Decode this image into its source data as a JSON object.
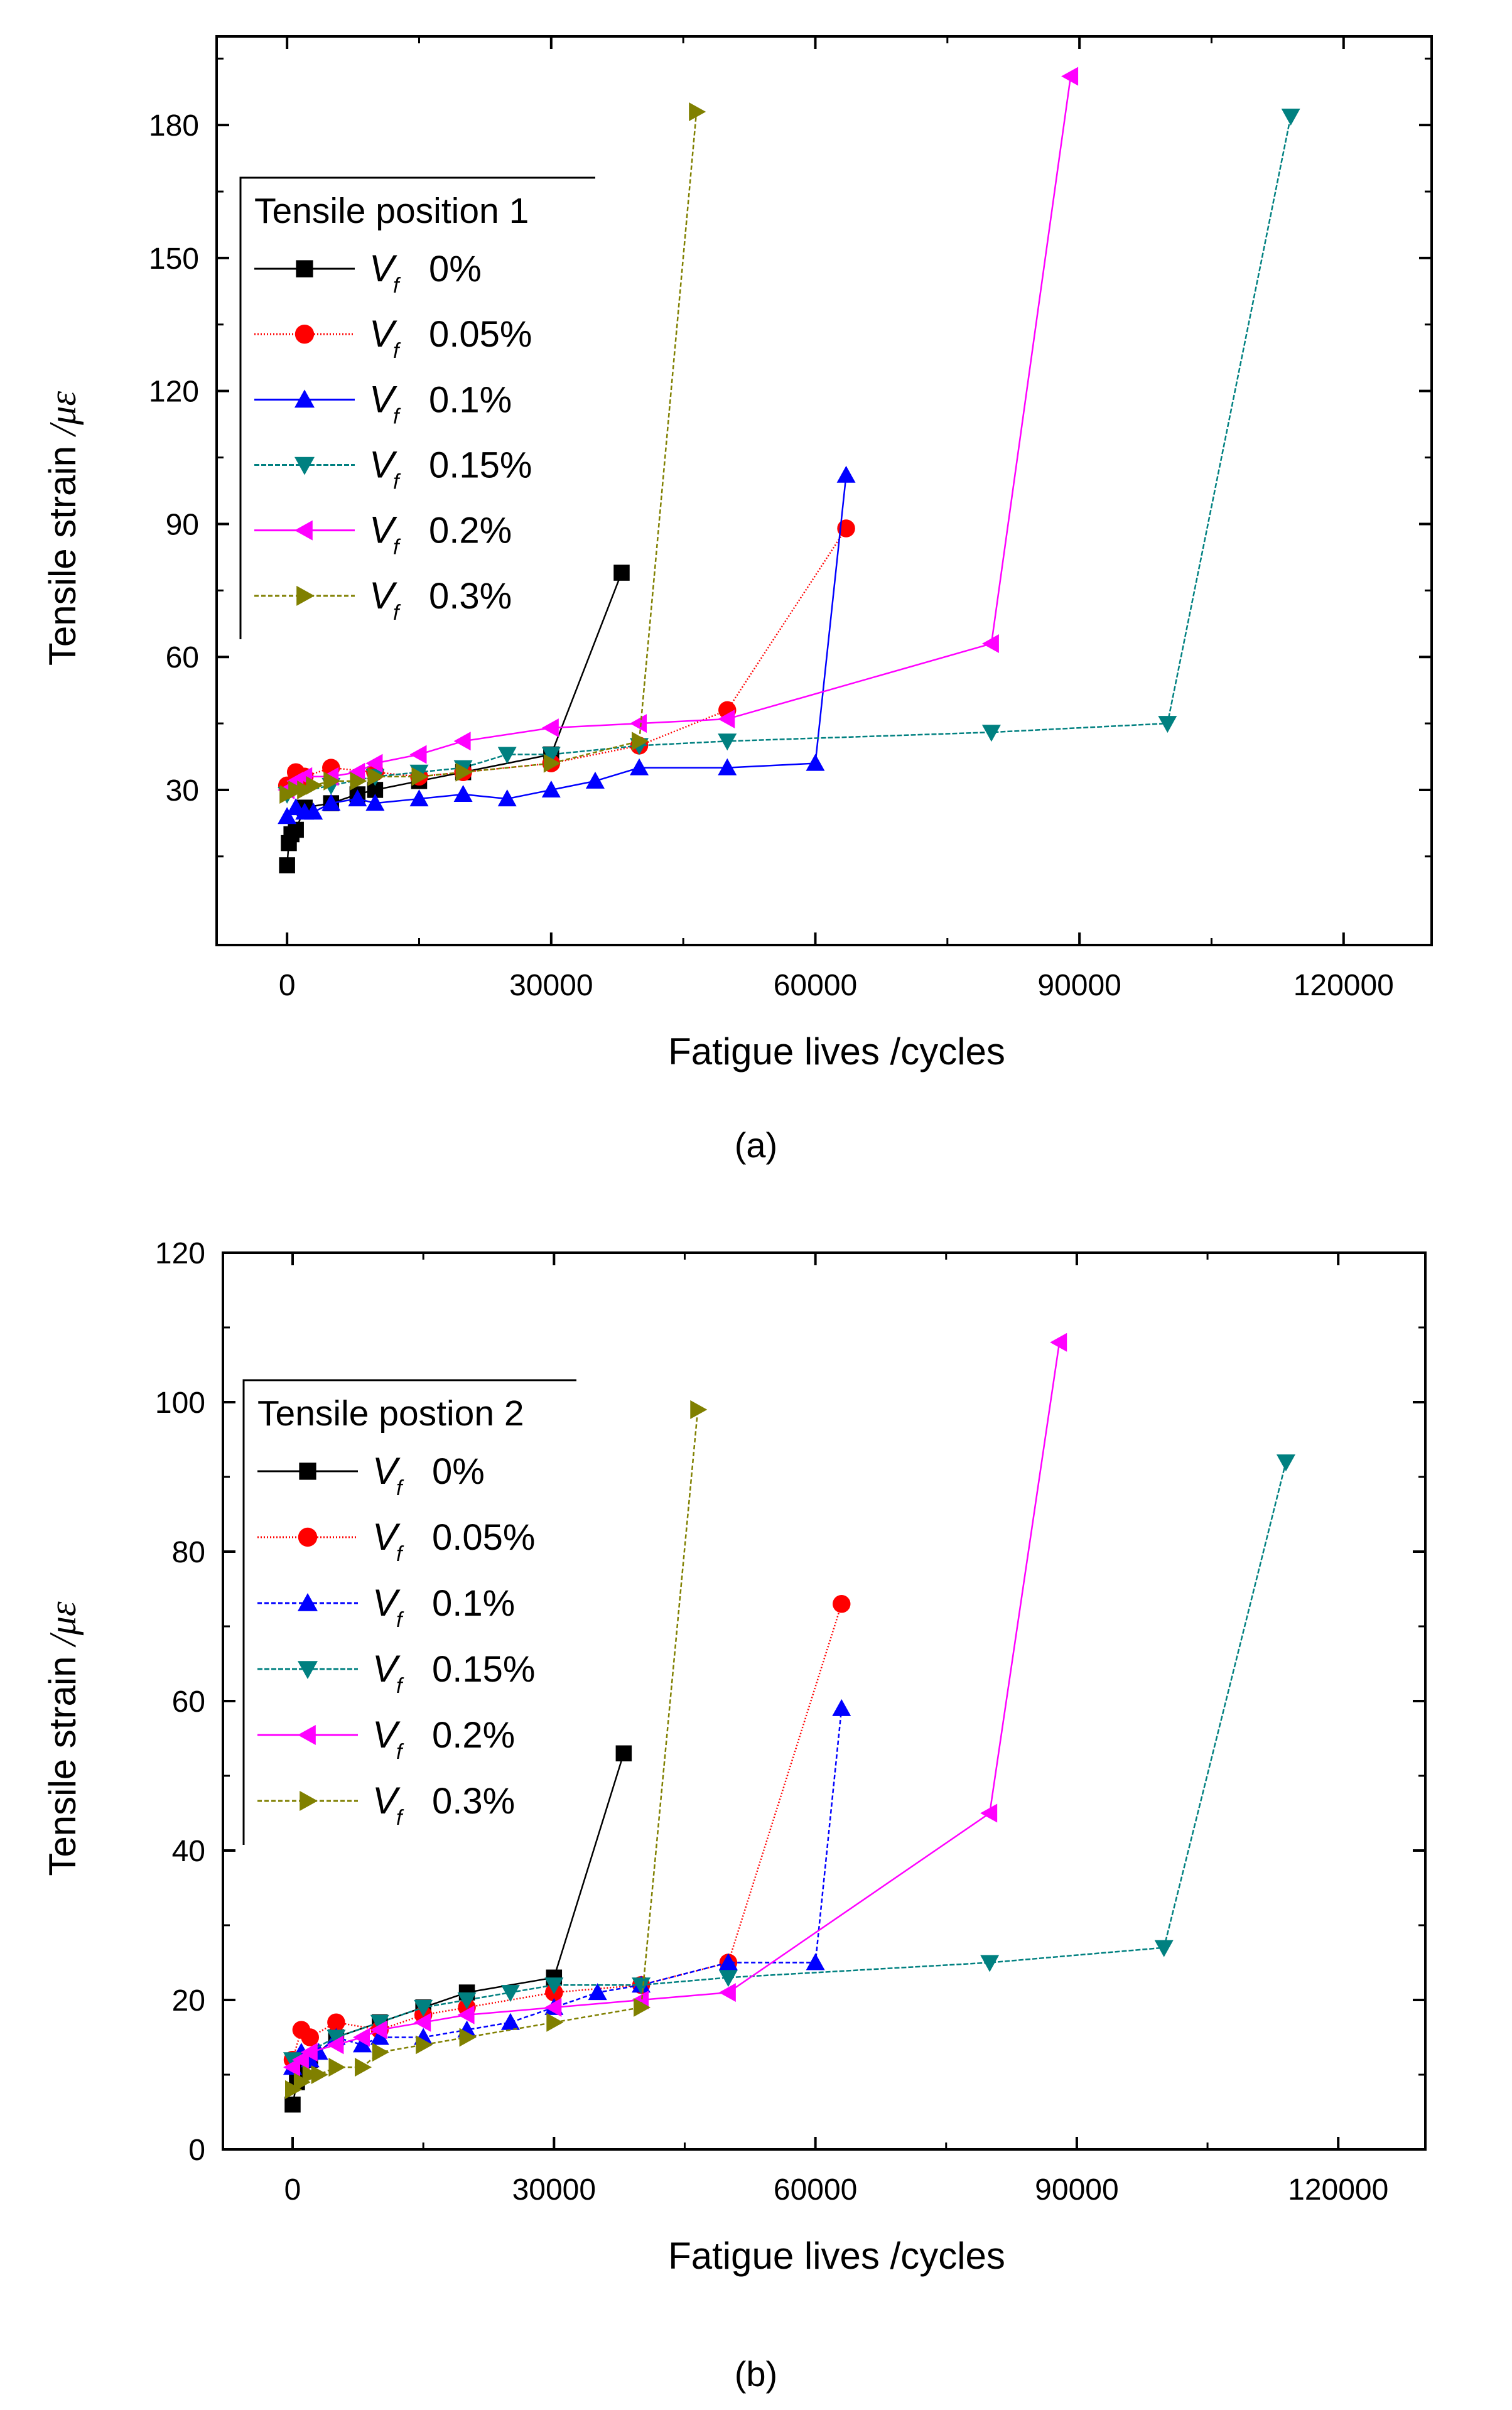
{
  "figure": {
    "panels": [
      {
        "caption": "(a)"
      },
      {
        "caption": "(b)"
      }
    ]
  },
  "chart_data": [
    {
      "type": "line",
      "panel": "a",
      "legend_title": "Tensile position 1",
      "legend_position": "top-left",
      "xlabel": "Fatigue lives   /cycles",
      "ylabel_main": "Tensile strain",
      "ylabel_unit": "/με",
      "xlim": [
        -8000,
        130000
      ],
      "ylim": [
        -5,
        200
      ],
      "xticks": [
        0,
        30000,
        60000,
        90000,
        120000
      ],
      "yticks": [
        30,
        60,
        90,
        120,
        150,
        180
      ],
      "grid": false,
      "series": [
        {
          "name": "0%",
          "marker": "square",
          "color": "#000000",
          "dash": "none",
          "x": [
            0,
            200,
            500,
            1000,
            2000,
            5000,
            8000,
            10000,
            15000,
            20000,
            30000,
            38000
          ],
          "y": [
            13,
            18,
            20,
            21,
            26,
            27,
            29,
            30,
            32,
            34,
            38,
            79
          ]
        },
        {
          "name": "0.05%",
          "marker": "circle",
          "color": "#ff0000",
          "dash": "2,3",
          "x": [
            0,
            1000,
            2000,
            5000,
            10000,
            15000,
            20000,
            30000,
            40000,
            50000,
            63500
          ],
          "y": [
            31,
            34,
            33,
            35,
            34,
            33,
            34,
            36,
            40,
            48,
            89
          ]
        },
        {
          "name": "0.1%",
          "marker": "triangle-up",
          "color": "#0000ff",
          "dash": "none",
          "x": [
            0,
            1000,
            2000,
            3000,
            5000,
            8000,
            10000,
            15000,
            20000,
            25000,
            30000,
            35000,
            40000,
            50000,
            60000,
            63500
          ],
          "y": [
            24,
            26,
            25,
            25,
            27,
            28,
            27,
            28,
            29,
            28,
            30,
            32,
            35,
            35,
            36,
            101
          ]
        },
        {
          "name": "0.15%",
          "marker": "triangle-down",
          "color": "#008080",
          "dash": "8,3",
          "x": [
            0,
            5000,
            10000,
            15000,
            20000,
            25000,
            30000,
            40000,
            50000,
            80000,
            100000,
            114000
          ],
          "y": [
            29,
            31,
            33,
            34,
            35,
            38,
            38,
            40,
            41,
            43,
            45,
            182
          ]
        },
        {
          "name": "0.2%",
          "marker": "triangle-left",
          "color": "#ff00ff",
          "dash": "none",
          "x": [
            0,
            1000,
            2000,
            5000,
            8000,
            10000,
            15000,
            20000,
            30000,
            40000,
            50000,
            80000,
            89000
          ],
          "y": [
            30,
            32,
            33,
            33,
            34,
            36,
            38,
            41,
            44,
            45,
            46,
            63,
            191
          ]
        },
        {
          "name": "0.3%",
          "marker": "triangle-right",
          "color": "#808000",
          "dash": "7,4",
          "x": [
            0,
            1000,
            2000,
            3000,
            5000,
            8000,
            10000,
            15000,
            20000,
            30000,
            40000,
            46500
          ],
          "y": [
            29,
            30,
            30,
            31,
            32,
            32,
            33,
            33,
            34,
            36,
            41,
            183
          ]
        }
      ]
    },
    {
      "type": "line",
      "panel": "b",
      "legend_title": "Tensile postion 2",
      "legend_position": "top-left",
      "xlabel": "Fatigue lives   /cycles",
      "ylabel_main": "Tensile strain",
      "ylabel_unit": "/με",
      "xlim": [
        -8000,
        130000
      ],
      "ylim": [
        0,
        120
      ],
      "xticks": [
        0,
        30000,
        60000,
        90000,
        120000
      ],
      "yticks": [
        0,
        20,
        40,
        60,
        80,
        100,
        120
      ],
      "grid": false,
      "series": [
        {
          "name": "0%",
          "marker": "square",
          "color": "#000000",
          "dash": "none",
          "x": [
            0,
            500,
            1000,
            2000,
            5000,
            10000,
            15000,
            20000,
            30000,
            38000
          ],
          "y": [
            6,
            9,
            11,
            12,
            15,
            17,
            19,
            21,
            23,
            53
          ]
        },
        {
          "name": "0.05%",
          "marker": "circle",
          "color": "#ff0000",
          "dash": "2,3",
          "x": [
            0,
            1000,
            2000,
            5000,
            10000,
            15000,
            20000,
            30000,
            40000,
            50000,
            63000
          ],
          "y": [
            12,
            16,
            15,
            17,
            16,
            18,
            19,
            21,
            22,
            25,
            73
          ]
        },
        {
          "name": "0.1%",
          "marker": "triangle-up",
          "color": "#0000ff",
          "dash": "7,4",
          "x": [
            0,
            1000,
            2000,
            3000,
            5000,
            8000,
            10000,
            15000,
            20000,
            25000,
            30000,
            35000,
            40000,
            50000,
            60000,
            63000
          ],
          "y": [
            11,
            13,
            12,
            13,
            15,
            14,
            15,
            15,
            16,
            17,
            19,
            21,
            22,
            25,
            25,
            59
          ]
        },
        {
          "name": "0.15%",
          "marker": "triangle-down",
          "color": "#008080",
          "dash": "8,3",
          "x": [
            0,
            5000,
            10000,
            15000,
            20000,
            25000,
            30000,
            40000,
            50000,
            80000,
            100000,
            114000
          ],
          "y": [
            12,
            15,
            17,
            19,
            20,
            21,
            22,
            22,
            23,
            25,
            27,
            92
          ]
        },
        {
          "name": "0.2%",
          "marker": "triangle-left",
          "color": "#ff00ff",
          "dash": "none",
          "x": [
            0,
            1000,
            2000,
            5000,
            8000,
            10000,
            15000,
            20000,
            30000,
            40000,
            50000,
            80000,
            88000
          ],
          "y": [
            11,
            12,
            13,
            14,
            15,
            16,
            17,
            18,
            19,
            20,
            21,
            45,
            108
          ]
        },
        {
          "name": "0.3%",
          "marker": "triangle-right",
          "color": "#808000",
          "dash": "7,4",
          "x": [
            0,
            1000,
            2000,
            3000,
            5000,
            8000,
            10000,
            15000,
            20000,
            30000,
            40000,
            46500
          ],
          "y": [
            8,
            9,
            10,
            10,
            11,
            11,
            13,
            14,
            15,
            17,
            19,
            99
          ]
        }
      ]
    }
  ]
}
